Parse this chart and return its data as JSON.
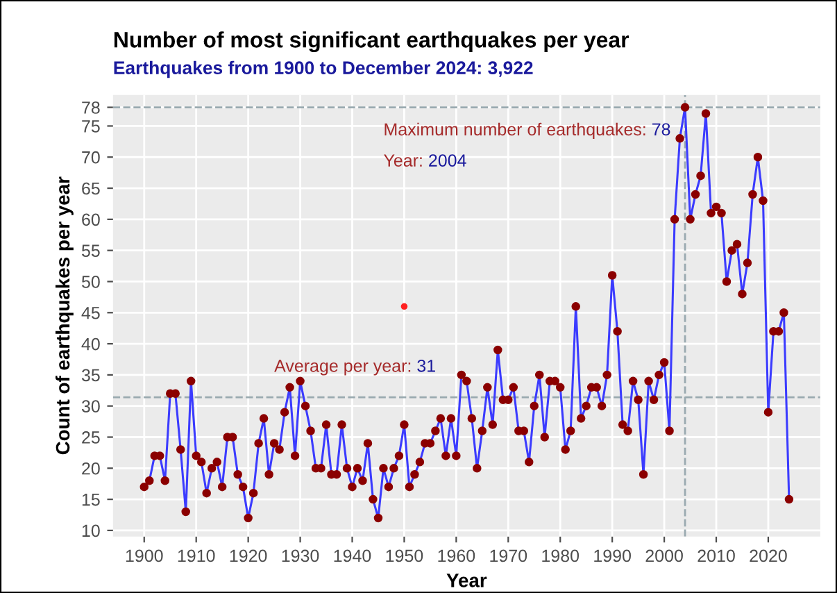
{
  "chart_data": {
    "type": "line",
    "title": "Number of most significant earthquakes per year",
    "subtitle": "Earthquakes from 1900 to December 2024: 3,922",
    "xlabel": "Year",
    "ylabel": "Count of earthquakes per year",
    "series": [
      {
        "color": "#3b3bff",
        "x": [
          1900,
          1901,
          1902,
          1903,
          1904,
          1905,
          1906,
          1907,
          1908,
          1909,
          1910,
          1911,
          1912,
          1913,
          1914,
          1915,
          1916,
          1917,
          1918,
          1919,
          1920,
          1921,
          1922,
          1923,
          1924,
          1925,
          1926,
          1927,
          1928,
          1929,
          1930,
          1931,
          1932,
          1933,
          1934,
          1935,
          1936,
          1937,
          1938,
          1939,
          1940,
          1941,
          1942,
          1943,
          1944,
          1945,
          1946,
          1947,
          1948,
          1949,
          1950,
          1951,
          1952,
          1953,
          1954,
          1955,
          1956,
          1957,
          1958,
          1959,
          1960,
          1961,
          1962,
          1963,
          1964,
          1965,
          1966,
          1967,
          1968,
          1969,
          1970,
          1971,
          1972,
          1973,
          1974,
          1975,
          1976,
          1977,
          1978,
          1979,
          1980,
          1981,
          1982,
          1983,
          1984,
          1985,
          1986,
          1987,
          1988,
          1989,
          1990,
          1991,
          1992,
          1993,
          1994,
          1995,
          1996,
          1997,
          1998,
          1999,
          2000,
          2001,
          2002,
          2003,
          2004,
          2005,
          2006,
          2007,
          2008,
          2009,
          2010,
          2011,
          2012,
          2013,
          2014,
          2015,
          2016,
          2017,
          2018,
          2019,
          2020,
          2021,
          2022,
          2023,
          2024
        ],
        "values": [
          17,
          18,
          22,
          22,
          18,
          32,
          32,
          23,
          13,
          34,
          22,
          21,
          16,
          20,
          21,
          17,
          25,
          25,
          19,
          17,
          12,
          16,
          24,
          28,
          19,
          24,
          23,
          29,
          33,
          22,
          34,
          30,
          26,
          20,
          20,
          27,
          19,
          19,
          27,
          20,
          17,
          20,
          18,
          24,
          15,
          12,
          20,
          17,
          20,
          22,
          27,
          17,
          19,
          21,
          24,
          24,
          26,
          28,
          22,
          28,
          22,
          35,
          34,
          28,
          20,
          26,
          33,
          27,
          39,
          31,
          31,
          33,
          26,
          26,
          21,
          30,
          35,
          25,
          34,
          34,
          33,
          23,
          26,
          46,
          28,
          30,
          33,
          33,
          30,
          35,
          51,
          42,
          27,
          26,
          34,
          31,
          19,
          34,
          31,
          35,
          37,
          26,
          60,
          73,
          78,
          60,
          64,
          67,
          77,
          61,
          62,
          61,
          50,
          55,
          56,
          48,
          53,
          64,
          70,
          63,
          29,
          42,
          42,
          45,
          15
        ]
      },
      {
        "type": "scatter",
        "color": "#ff2020",
        "x": [
          1950
        ],
        "values": [
          46
        ]
      }
    ],
    "xlim": [
      1894,
      2030
    ],
    "ylim": [
      9,
      80
    ],
    "xticks": [
      1900,
      1910,
      1920,
      1930,
      1940,
      1950,
      1960,
      1970,
      1980,
      1990,
      2000,
      2010,
      2020
    ],
    "yticks": [
      10,
      15,
      20,
      25,
      30,
      35,
      40,
      45,
      50,
      55,
      60,
      65,
      70,
      75,
      78
    ],
    "ref_lines": [
      {
        "axis": "y",
        "value": 78,
        "color": "#9aaab0",
        "line_style": "dashed"
      },
      {
        "axis": "y",
        "value": 31.4,
        "color": "#9aaab0",
        "line_style": "dashed"
      },
      {
        "axis": "x",
        "value": 2004,
        "color": "#9aaab0",
        "line_style": "dashed"
      }
    ],
    "annotations": [
      "Maximum number of earthquakes: 78",
      "Year: 2004",
      "Average per year: 31"
    ],
    "grid": true,
    "marker": "circle",
    "line_style": "solid"
  }
}
